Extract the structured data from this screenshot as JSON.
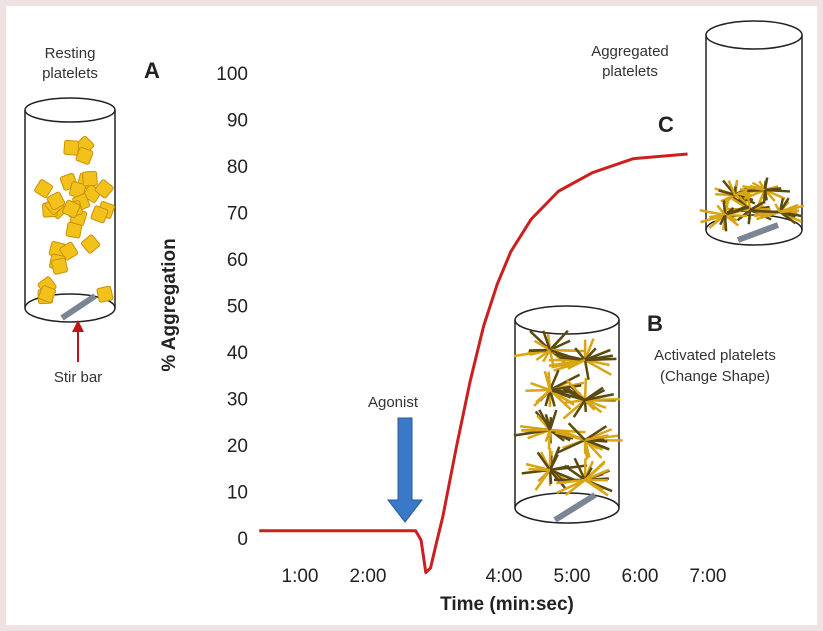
{
  "chart_data": {
    "type": "line",
    "xlabel": "Time (min:sec)",
    "ylabel": "% Aggregation",
    "xlim": [
      0,
      7.5
    ],
    "ylim": [
      -10,
      105
    ],
    "xticks": [
      {
        "value": 1,
        "label": "1:00"
      },
      {
        "value": 2,
        "label": "2:00"
      },
      {
        "value": 4,
        "label": "4:00"
      },
      {
        "value": 5,
        "label": "5:00"
      },
      {
        "value": 6,
        "label": "6:00"
      },
      {
        "value": 7,
        "label": "7:00"
      }
    ],
    "yticks": [
      0,
      10,
      20,
      30,
      40,
      50,
      60,
      70,
      80,
      90,
      100
    ],
    "grid": false,
    "series": [
      {
        "color": "#cc1f1f",
        "x": [
          0.4,
          2.7,
          2.78,
          2.85,
          2.92,
          3.0,
          3.1,
          3.3,
          3.5,
          3.7,
          3.9,
          4.1,
          4.4,
          4.8,
          5.3,
          5.9,
          6.7
        ],
        "values": [
          2,
          2,
          0,
          -7,
          -6,
          -1,
          5,
          20,
          34,
          46,
          55,
          62,
          69,
          75,
          79,
          82,
          83
        ]
      }
    ],
    "annotations": {
      "resting": [
        "Resting",
        "platelets"
      ],
      "a": "A",
      "stir_bar": "Stir bar",
      "aggregated": [
        "Aggregated",
        "platelets"
      ],
      "c": "C",
      "b": "B",
      "activated": [
        "Activated platelets",
        "(Change Shape)"
      ],
      "agonist": "Agonist"
    }
  }
}
